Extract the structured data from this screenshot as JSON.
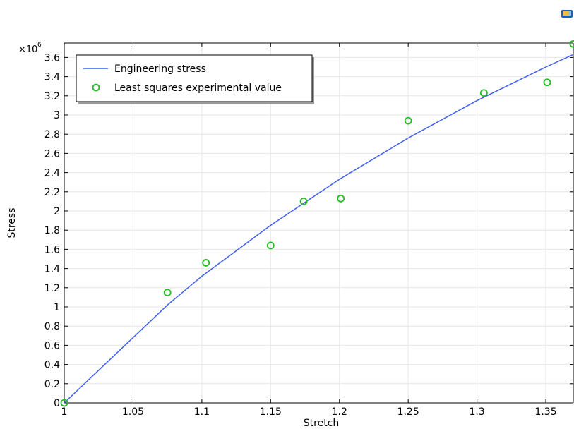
{
  "toolbar": {
    "icon": "graphics-window-icon"
  },
  "chart_data": {
    "type": "line",
    "xlabel": "Stretch",
    "ylabel": "Stress",
    "y_multiplier_label": "×10",
    "y_multiplier_exponent": "6",
    "xlim": [
      1.0,
      1.37
    ],
    "ylim": [
      0,
      3.75
    ],
    "xticks": [
      1,
      1.05,
      1.1,
      1.15,
      1.2,
      1.25,
      1.3,
      1.35
    ],
    "yticks": [
      0,
      0.2,
      0.4,
      0.6,
      0.8,
      1,
      1.2,
      1.4,
      1.6,
      1.8,
      2,
      2.2,
      2.4,
      2.6,
      2.8,
      3,
      3.2,
      3.4,
      3.6
    ],
    "grid": true,
    "legend_position": "top-left",
    "series": [
      {
        "name": "Engineering stress",
        "kind": "line",
        "color": "#3f5ef0",
        "x": [
          1.0,
          1.075,
          1.1,
          1.15,
          1.2,
          1.25,
          1.3,
          1.35,
          1.37
        ],
        "y": [
          0.0,
          1.02,
          1.32,
          1.85,
          2.33,
          2.76,
          3.15,
          3.5,
          3.63
        ]
      },
      {
        "name": "Least squares experimental value",
        "kind": "scatter",
        "color": "#22bb22",
        "x": [
          1.0,
          1.075,
          1.103,
          1.15,
          1.174,
          1.201,
          1.25,
          1.305,
          1.351,
          1.37
        ],
        "y": [
          0.0,
          1.15,
          1.46,
          1.64,
          2.1,
          2.13,
          2.94,
          3.23,
          3.34,
          3.74
        ]
      }
    ]
  }
}
